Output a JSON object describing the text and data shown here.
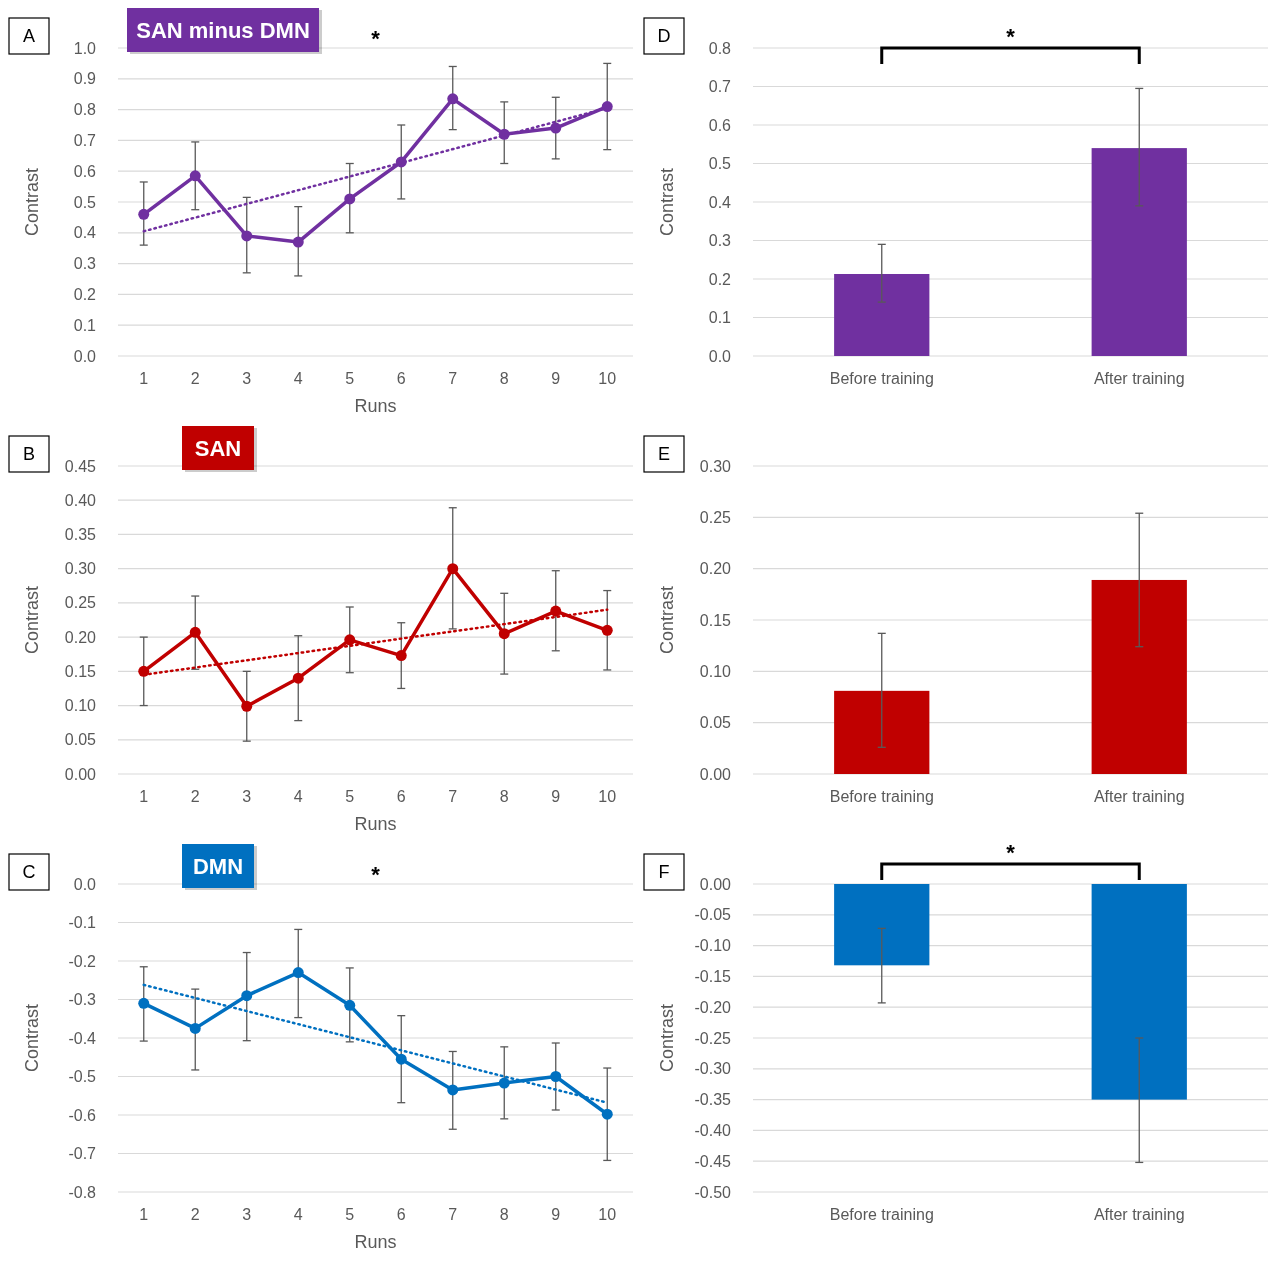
{
  "chart_data": [
    {
      "type": "line",
      "title": "SAN minus DMN",
      "xlabel": "Runs",
      "ylabel": "Contrast",
      "annotations": [
        "A",
        "*"
      ],
      "categories": [
        "1",
        "2",
        "3",
        "4",
        "5",
        "6",
        "7",
        "8",
        "9",
        "10"
      ],
      "ylim": [
        0,
        1
      ],
      "yticks": [
        {
          "value": 0,
          "label": "0.0"
        },
        0.1,
        0.2,
        0.3,
        0.4,
        0.5,
        0.6,
        0.7,
        0.8,
        0.9,
        {
          "value": 1,
          "label": "1.0"
        }
      ],
      "grid": "y",
      "series": [
        {
          "color": "#7030a0",
          "marker": "circle",
          "line_style": "solid",
          "values": [
            0.46,
            0.585,
            0.39,
            0.37,
            0.51,
            0.63,
            0.835,
            0.72,
            0.74,
            0.81
          ],
          "errors": [
            [
              0.36,
              0.565
            ],
            [
              0.475,
              0.695
            ],
            [
              0.27,
              0.515
            ],
            [
              0.26,
              0.485
            ],
            [
              0.4,
              0.625
            ],
            [
              0.51,
              0.75
            ],
            [
              0.735,
              0.94
            ],
            [
              0.625,
              0.825
            ],
            [
              0.64,
              0.84
            ],
            [
              0.67,
              0.95
            ]
          ]
        },
        {
          "type": "line",
          "color": "#7030a0",
          "marker": "none",
          "line_style": "dotted",
          "x": [
            "1",
            "10"
          ],
          "values": [
            0.405,
            0.805
          ]
        }
      ]
    },
    {
      "type": "bar",
      "ylabel": "Contrast",
      "annotations": [
        "D",
        "*"
      ],
      "categories": [
        "Before training",
        "After training"
      ],
      "ylim": [
        0,
        0.8
      ],
      "yticks": [
        {
          "value": 0,
          "label": "0.0"
        },
        0.1,
        0.2,
        0.3,
        0.4,
        0.5,
        0.6,
        0.7,
        0.8
      ],
      "grid": "y",
      "series": [
        {
          "color": "#7030a0",
          "values": [
            0.213,
            0.54
          ],
          "errors": [
            [
              0.14,
              0.29
            ],
            [
              0.39,
              0.695
            ]
          ]
        }
      ]
    },
    {
      "type": "line",
      "title": "SAN",
      "xlabel": "Runs",
      "ylabel": "Contrast",
      "annotations": [
        "B"
      ],
      "categories": [
        "1",
        "2",
        "3",
        "4",
        "5",
        "6",
        "7",
        "8",
        "9",
        "10"
      ],
      "ylim": [
        0,
        0.45
      ],
      "yticks": [
        {
          "value": 0,
          "label": "0.00"
        },
        0.05,
        {
          "value": 0.1,
          "label": "0.10"
        },
        0.15,
        {
          "value": 0.2,
          "label": "0.20"
        },
        0.25,
        {
          "value": 0.3,
          "label": "0.30"
        },
        0.35,
        {
          "value": 0.4,
          "label": "0.40"
        },
        0.45
      ],
      "grid": "y",
      "series": [
        {
          "color": "#c00000",
          "marker": "circle",
          "line_style": "solid",
          "values": [
            0.15,
            0.207,
            0.099,
            0.14,
            0.196,
            0.173,
            0.3,
            0.205,
            0.238,
            0.21
          ],
          "errors": [
            [
              0.1,
              0.2
            ],
            [
              0.153,
              0.26
            ],
            [
              0.048,
              0.15
            ],
            [
              0.078,
              0.202
            ],
            [
              0.148,
              0.244
            ],
            [
              0.125,
              0.221
            ],
            [
              0.212,
              0.389
            ],
            [
              0.146,
              0.264
            ],
            [
              0.18,
              0.297
            ],
            [
              0.152,
              0.268
            ]
          ]
        },
        {
          "type": "line",
          "color": "#c00000",
          "marker": "none",
          "line_style": "dotted",
          "x": [
            "1",
            "10"
          ],
          "values": [
            0.145,
            0.24
          ]
        }
      ]
    },
    {
      "type": "bar",
      "ylabel": "Contrast",
      "annotations": [
        "E"
      ],
      "categories": [
        "Before training",
        "After training"
      ],
      "ylim": [
        0,
        0.3
      ],
      "yticks": [
        {
          "value": 0,
          "label": "0.00"
        },
        0.05,
        {
          "value": 0.1,
          "label": "0.10"
        },
        0.15,
        {
          "value": 0.2,
          "label": "0.20"
        },
        0.25,
        {
          "value": 0.3,
          "label": "0.30"
        }
      ],
      "grid": "y",
      "series": [
        {
          "color": "#c00000",
          "values": [
            0.081,
            0.189
          ],
          "errors": [
            [
              0.026,
              0.137
            ],
            [
              0.124,
              0.254
            ]
          ]
        }
      ]
    },
    {
      "type": "line",
      "title": "DMN",
      "xlabel": "Runs",
      "ylabel": "Contrast",
      "annotations": [
        "C",
        "*"
      ],
      "categories": [
        "1",
        "2",
        "3",
        "4",
        "5",
        "6",
        "7",
        "8",
        "9",
        "10"
      ],
      "ylim": [
        -0.8,
        0
      ],
      "yticks": [
        -0.8,
        -0.7,
        -0.6,
        -0.5,
        -0.4,
        -0.3,
        -0.2,
        -0.1,
        {
          "value": 0,
          "label": "0.0"
        }
      ],
      "grid": "y",
      "series": [
        {
          "color": "#0070c0",
          "marker": "circle",
          "line_style": "solid",
          "values": [
            -0.31,
            -0.375,
            -0.29,
            -0.23,
            -0.315,
            -0.455,
            -0.535,
            -0.517,
            -0.5,
            -0.598
          ],
          "errors": [
            [
              -0.408,
              -0.215
            ],
            [
              -0.483,
              -0.273
            ],
            [
              -0.407,
              -0.178
            ],
            [
              -0.347,
              -0.118
            ],
            [
              -0.41,
              -0.218
            ],
            [
              -0.568,
              -0.342
            ],
            [
              -0.637,
              -0.435
            ],
            [
              -0.61,
              -0.423
            ],
            [
              -0.587,
              -0.413
            ],
            [
              -0.718,
              -0.478
            ]
          ]
        },
        {
          "type": "line",
          "color": "#0070c0",
          "marker": "none",
          "line_style": "dotted",
          "x": [
            "1",
            "10"
          ],
          "values": [
            -0.262,
            -0.568
          ]
        }
      ]
    },
    {
      "type": "bar",
      "ylabel": "Contrast",
      "annotations": [
        "F",
        "*"
      ],
      "categories": [
        "Before training",
        "After training"
      ],
      "ylim": [
        -0.5,
        0
      ],
      "yticks": [
        {
          "value": -0.5,
          "label": "-0.50"
        },
        -0.45,
        {
          "value": -0.4,
          "label": "-0.40"
        },
        -0.35,
        {
          "value": -0.3,
          "label": "-0.30"
        },
        -0.25,
        {
          "value": -0.2,
          "label": "-0.20"
        },
        -0.15,
        {
          "value": -0.1,
          "label": "-0.10"
        },
        -0.05,
        {
          "value": 0,
          "label": "0.00"
        }
      ],
      "grid": "y",
      "series": [
        {
          "color": "#0070c0",
          "values": [
            -0.132,
            -0.35
          ],
          "errors": [
            [
              -0.193,
              -0.072
            ],
            [
              -0.452,
              -0.25
            ]
          ]
        }
      ]
    }
  ]
}
